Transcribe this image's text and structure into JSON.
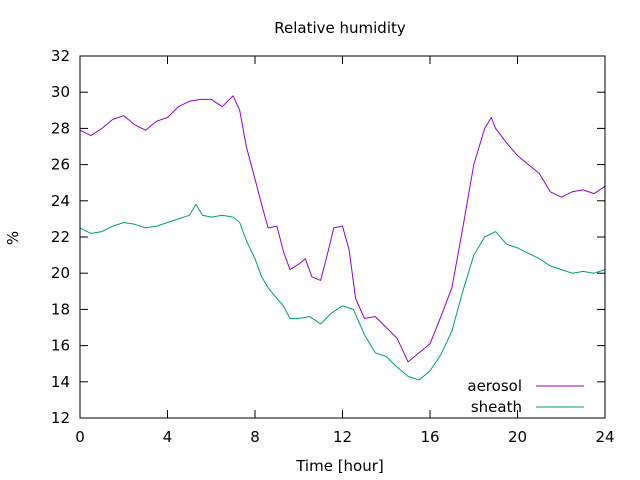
{
  "chart_data": {
    "type": "line",
    "title": "Relative humidity",
    "xlabel": "Time [hour]",
    "ylabel": "%",
    "xlim": [
      0,
      24
    ],
    "ylim": [
      12,
      32
    ],
    "xticks": [
      0,
      4,
      8,
      12,
      16,
      20,
      24
    ],
    "yticks": [
      12,
      14,
      16,
      18,
      20,
      22,
      24,
      26,
      28,
      30,
      32
    ],
    "grid": false,
    "legend_position": "bottom-right",
    "series": [
      {
        "name": "aerosol",
        "color": "#9400d3",
        "points": [
          [
            0,
            27.9
          ],
          [
            0.5,
            27.6
          ],
          [
            1,
            28.0
          ],
          [
            1.5,
            28.5
          ],
          [
            2,
            28.7
          ],
          [
            2.5,
            28.2
          ],
          [
            3,
            27.9
          ],
          [
            3.5,
            28.4
          ],
          [
            4,
            28.6
          ],
          [
            4.5,
            29.2
          ],
          [
            5,
            29.5
          ],
          [
            5.5,
            29.6
          ],
          [
            6,
            29.6
          ],
          [
            6.5,
            29.2
          ],
          [
            7,
            29.8
          ],
          [
            7.3,
            29.0
          ],
          [
            7.6,
            27.0
          ],
          [
            8,
            25.2
          ],
          [
            8.3,
            23.8
          ],
          [
            8.6,
            22.5
          ],
          [
            9,
            22.6
          ],
          [
            9.3,
            21.2
          ],
          [
            9.6,
            20.2
          ],
          [
            10,
            20.5
          ],
          [
            10.3,
            20.8
          ],
          [
            10.6,
            19.8
          ],
          [
            11,
            19.6
          ],
          [
            11.3,
            21.0
          ],
          [
            11.6,
            22.5
          ],
          [
            12,
            22.6
          ],
          [
            12.3,
            21.3
          ],
          [
            12.6,
            18.6
          ],
          [
            13,
            17.5
          ],
          [
            13.5,
            17.6
          ],
          [
            14,
            17.0
          ],
          [
            14.5,
            16.4
          ],
          [
            15,
            15.1
          ],
          [
            15.5,
            15.6
          ],
          [
            16,
            16.1
          ],
          [
            16.5,
            17.6
          ],
          [
            17,
            19.2
          ],
          [
            17.5,
            22.5
          ],
          [
            18,
            26.0
          ],
          [
            18.5,
            28.0
          ],
          [
            18.8,
            28.6
          ],
          [
            19,
            28.0
          ],
          [
            19.5,
            27.2
          ],
          [
            20,
            26.5
          ],
          [
            20.5,
            26.0
          ],
          [
            21,
            25.5
          ],
          [
            21.5,
            24.5
          ],
          [
            22,
            24.2
          ],
          [
            22.5,
            24.5
          ],
          [
            23,
            24.6
          ],
          [
            23.5,
            24.4
          ],
          [
            24,
            24.8
          ]
        ]
      },
      {
        "name": "sheath",
        "color": "#009e73",
        "points": [
          [
            0,
            22.5
          ],
          [
            0.5,
            22.2
          ],
          [
            1,
            22.3
          ],
          [
            1.5,
            22.6
          ],
          [
            2,
            22.8
          ],
          [
            2.5,
            22.7
          ],
          [
            3,
            22.5
          ],
          [
            3.5,
            22.6
          ],
          [
            4,
            22.8
          ],
          [
            4.5,
            23.0
          ],
          [
            5,
            23.2
          ],
          [
            5.3,
            23.8
          ],
          [
            5.6,
            23.2
          ],
          [
            6,
            23.1
          ],
          [
            6.5,
            23.2
          ],
          [
            7,
            23.1
          ],
          [
            7.3,
            22.8
          ],
          [
            7.6,
            21.8
          ],
          [
            8,
            20.8
          ],
          [
            8.3,
            19.8
          ],
          [
            8.6,
            19.2
          ],
          [
            9,
            18.6
          ],
          [
            9.3,
            18.2
          ],
          [
            9.6,
            17.5
          ],
          [
            10,
            17.5
          ],
          [
            10.5,
            17.6
          ],
          [
            11,
            17.2
          ],
          [
            11.5,
            17.8
          ],
          [
            12,
            18.2
          ],
          [
            12.5,
            18.0
          ],
          [
            13,
            16.6
          ],
          [
            13.5,
            15.6
          ],
          [
            14,
            15.4
          ],
          [
            14.5,
            14.8
          ],
          [
            15,
            14.3
          ],
          [
            15.5,
            14.1
          ],
          [
            16,
            14.6
          ],
          [
            16.5,
            15.5
          ],
          [
            17,
            16.8
          ],
          [
            17.5,
            19.0
          ],
          [
            18,
            21.0
          ],
          [
            18.5,
            22.0
          ],
          [
            19,
            22.3
          ],
          [
            19.5,
            21.6
          ],
          [
            20,
            21.4
          ],
          [
            20.5,
            21.1
          ],
          [
            21,
            20.8
          ],
          [
            21.5,
            20.4
          ],
          [
            22,
            20.2
          ],
          [
            22.5,
            20.0
          ],
          [
            23,
            20.1
          ],
          [
            23.5,
            20.0
          ],
          [
            24,
            20.2
          ]
        ]
      }
    ]
  }
}
